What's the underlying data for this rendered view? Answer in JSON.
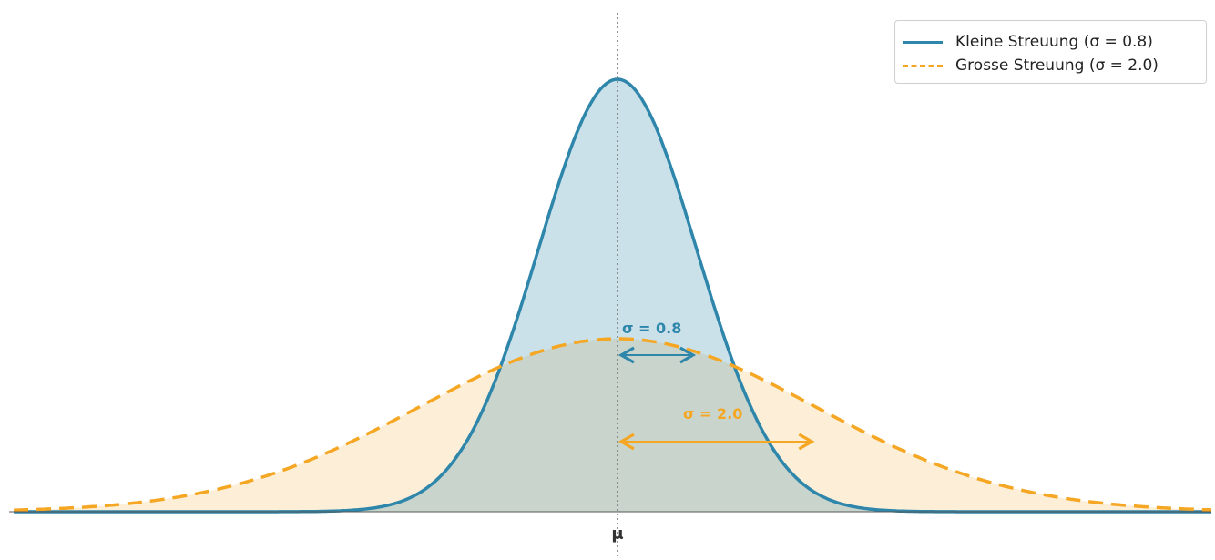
{
  "chart_data": {
    "type": "line",
    "title": "",
    "xlabel": "",
    "ylabel": "",
    "x_ticks": [
      "μ"
    ],
    "mu": 0,
    "xlim": [
      -6,
      6
    ],
    "series": [
      {
        "name": "Kleine Streuung (σ = 0.8)",
        "sigma": 0.8,
        "color": "#2e86ab",
        "fill": "rgba(46,134,171,0.25)",
        "style": "solid"
      },
      {
        "name": "Grosse Streuung (σ = 2.0)",
        "sigma": 2.0,
        "color": "#f5a623",
        "fill": "rgba(245,166,35,0.18)",
        "style": "dashed"
      }
    ],
    "annotations": [
      {
        "text": "σ = 0.8",
        "series": 0
      },
      {
        "text": "σ = 2.0",
        "series": 1
      }
    ],
    "legend_position": "top-right",
    "grid": false
  }
}
